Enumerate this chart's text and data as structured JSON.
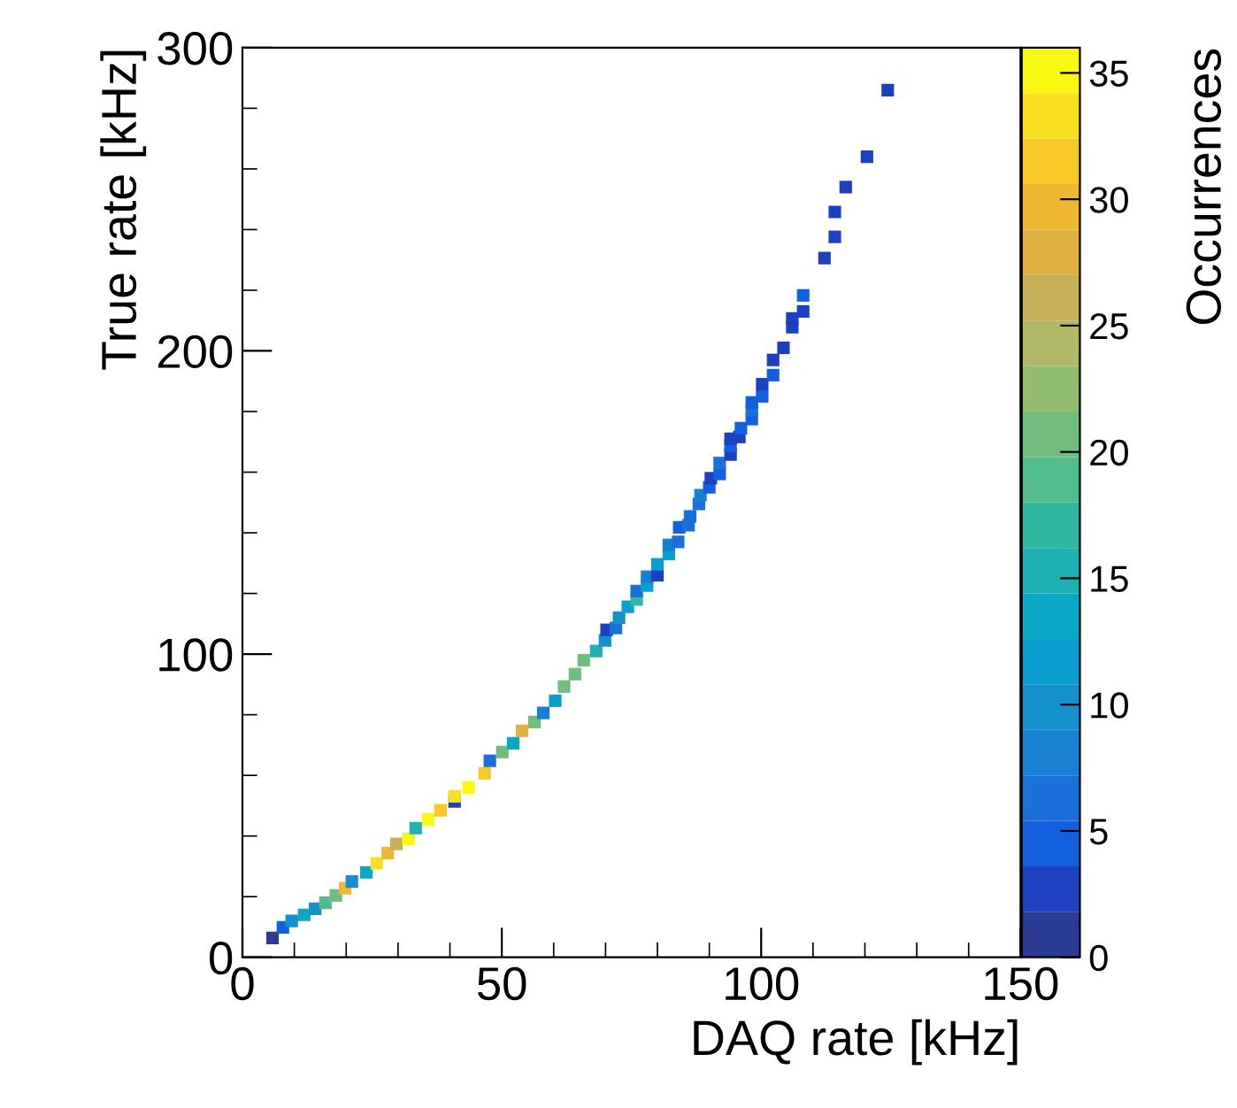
{
  "chart_data": {
    "type": "scatter",
    "xlabel": "DAQ rate [kHz]",
    "ylabel": "True rate [kHz]",
    "clabel": "Occurrences",
    "marker": "square",
    "grid": false,
    "legend": false,
    "xlim": [
      0,
      150
    ],
    "xticks": [
      0,
      50,
      100,
      150
    ],
    "ylim": [
      0,
      300
    ],
    "yticks": [
      0,
      100,
      200,
      300
    ],
    "clim": [
      0,
      36
    ],
    "cticks": [
      0,
      5,
      10,
      15,
      20,
      25,
      30,
      35
    ],
    "x": [
      5.8,
      7.8,
      9.5,
      11.9,
      14,
      16,
      18,
      19.8,
      21.1,
      23.9,
      25.9,
      28,
      29.7,
      32,
      33.4,
      35.8,
      38.2,
      40.9,
      40.9,
      43.6,
      46.7,
      47.7,
      50.1,
      52.2,
      53.9,
      56.3,
      58,
      60.3,
      62,
      64.1,
      65.8,
      68.2,
      69.9,
      70.2,
      72,
      72.6,
      74.3,
      76,
      76,
      78,
      78,
      80,
      80,
      82.2,
      82.2,
      84,
      84.2,
      86,
      86.3,
      88,
      88.3,
      90,
      90.3,
      92,
      92,
      94.1,
      94.1,
      94.1,
      95.8,
      96.1,
      98.2,
      98.2,
      98.2,
      100.2,
      100.2,
      102.3,
      102.3,
      104.3,
      106,
      106,
      108.1,
      108.1,
      112.2,
      114.2,
      114.2,
      116.3,
      120.4,
      124.4
    ],
    "values": [
      6.4,
      9.9,
      12,
      14,
      16,
      18,
      20.4,
      22.8,
      25,
      28,
      31,
      34.4,
      37.4,
      39,
      42.6,
      45.5,
      48.5,
      51.4,
      53.1,
      56,
      60.7,
      64.8,
      67.7,
      70.6,
      74.7,
      77.6,
      80.6,
      84.6,
      89.3,
      93.4,
      98,
      101,
      104.5,
      108,
      108.6,
      112,
      115.6,
      118,
      120.8,
      122.6,
      125.5,
      126,
      129.6,
      133,
      136,
      137,
      141.8,
      142.5,
      145.4,
      149.5,
      152.4,
      155,
      158,
      159.4,
      163,
      165.8,
      168.7,
      171,
      171.6,
      174.5,
      177.5,
      180.4,
      183,
      185,
      189,
      192,
      197,
      201,
      207.8,
      210.7,
      213,
      218.3,
      230.6,
      237.6,
      245.8,
      254,
      264,
      286
    ],
    "cvalues": [
      1,
      4,
      9,
      13,
      10,
      19,
      21,
      30,
      10,
      13,
      34,
      30,
      26,
      35,
      15,
      36,
      31,
      2,
      33,
      36,
      31,
      6,
      21,
      14,
      27,
      21,
      8,
      12,
      20,
      21,
      21,
      16,
      9,
      2,
      6,
      10,
      11,
      17,
      6,
      12,
      8,
      2,
      12,
      12,
      8,
      6,
      5,
      6,
      7,
      7,
      8,
      5,
      2,
      5,
      7,
      2,
      5,
      2,
      2,
      5,
      5,
      6,
      5,
      4,
      2,
      4,
      2,
      2,
      2,
      2,
      2,
      5,
      2,
      2,
      2,
      2,
      2,
      2
    ]
  }
}
